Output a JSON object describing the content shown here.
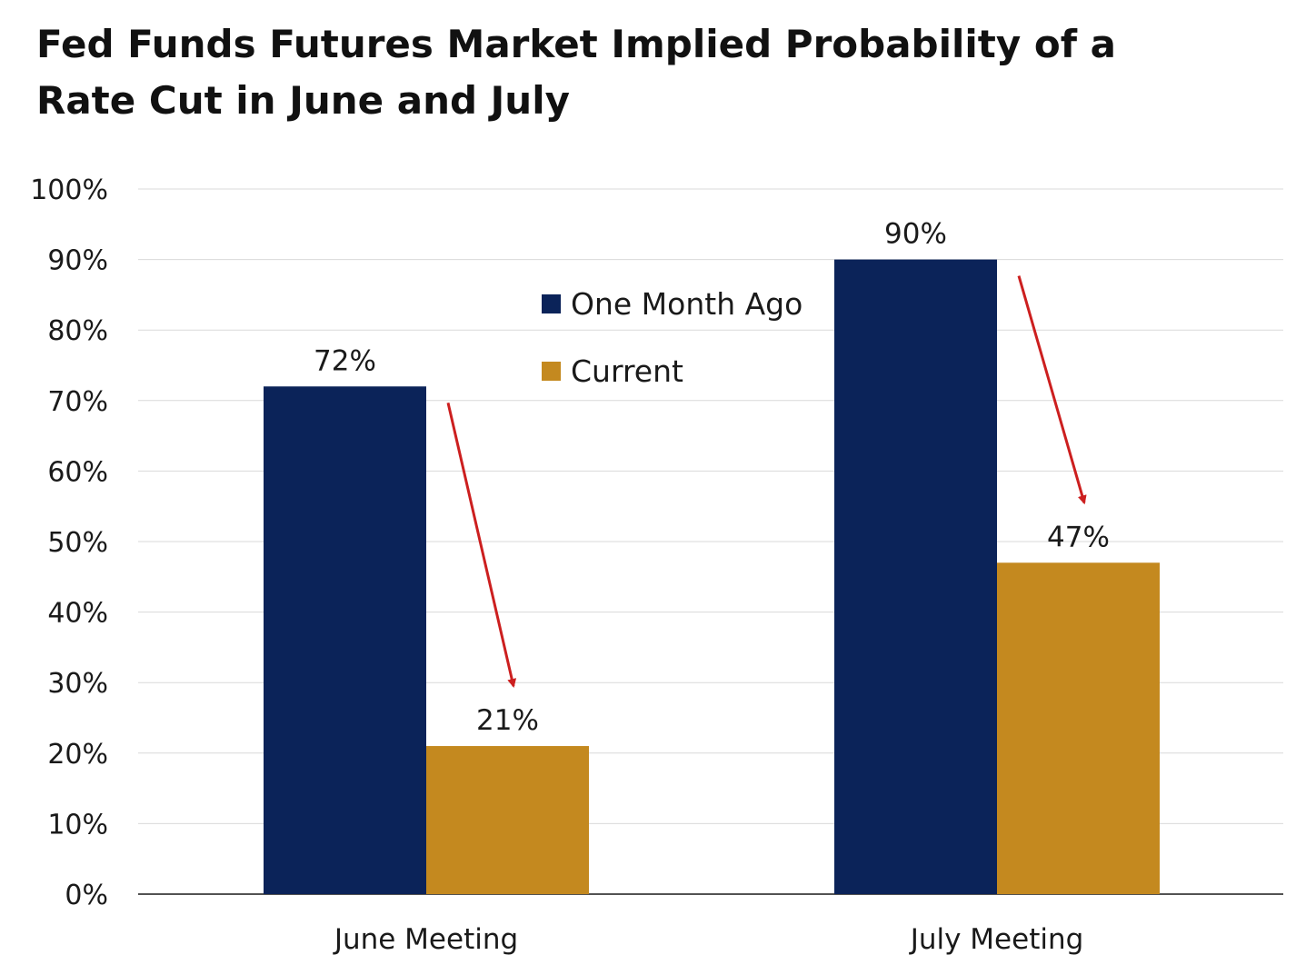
{
  "chart_data": {
    "type": "bar",
    "title": "Fed Funds Futures Market Implied Probability of a Rate Cut in June and July",
    "title_lines": [
      "Fed Funds Futures Market Implied Probability of a",
      "Rate Cut in June and July"
    ],
    "categories": [
      "June Meeting",
      "July Meeting"
    ],
    "series": [
      {
        "name": "One Month Ago",
        "values": [
          72,
          90
        ],
        "color": "#0b2359"
      },
      {
        "name": "Current",
        "values": [
          21,
          47
        ],
        "color": "#c4891f"
      }
    ],
    "data_labels": [
      [
        "72%",
        "90%"
      ],
      [
        "21%",
        "47%"
      ]
    ],
    "xlabel": "",
    "ylabel": "",
    "ylim": [
      0,
      100
    ],
    "yticks": [
      "0%",
      "10%",
      "20%",
      "30%",
      "40%",
      "50%",
      "60%",
      "70%",
      "80%",
      "90%",
      "100%"
    ],
    "grid": true,
    "legend_position": "top-center",
    "annotations": [
      {
        "type": "arrow",
        "category": "June Meeting",
        "from_series": "One Month Ago",
        "to_series": "Current",
        "color": "#cc1f1f"
      },
      {
        "type": "arrow",
        "category": "July Meeting",
        "from_series": "One Month Ago",
        "to_series": "Current",
        "color": "#cc1f1f"
      }
    ]
  }
}
